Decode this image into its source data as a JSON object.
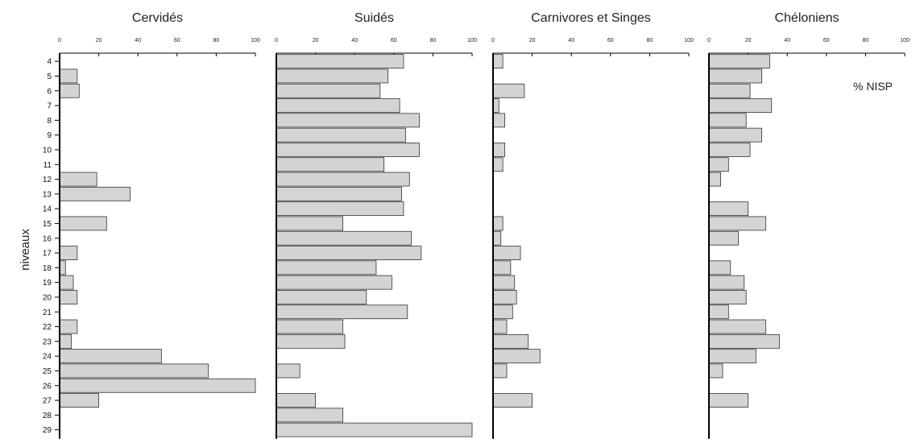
{
  "chart_data": {
    "type": "bar",
    "orientation": "horizontal",
    "ylabel": "niveaux",
    "unit_label": "% NISP",
    "xlim": [
      0,
      100
    ],
    "xticks": [
      0,
      20,
      40,
      60,
      80,
      100
    ],
    "levels": [
      "4",
      "5",
      "6",
      "7",
      "8",
      "9",
      "10",
      "11",
      "12",
      "13",
      "14",
      "15",
      "16",
      "17",
      "18",
      "19",
      "20",
      "21",
      "22",
      "23",
      "24",
      "25",
      "26",
      "27",
      "28",
      "29"
    ],
    "bar_color": "#d4d4d4",
    "panels": [
      {
        "title": "Cervidés",
        "values": [
          0,
          9,
          10,
          0,
          0,
          0,
          0,
          0,
          19,
          36,
          0,
          24,
          0,
          9,
          3,
          7,
          9,
          0,
          9,
          6,
          52,
          76,
          100,
          20,
          0,
          0
        ]
      },
      {
        "title": "Suidés",
        "values": [
          65,
          57,
          53,
          63,
          73,
          66,
          73,
          55,
          68,
          64,
          65,
          34,
          69,
          74,
          51,
          59,
          46,
          67,
          34,
          35,
          0,
          12,
          0,
          20,
          34,
          100
        ]
      },
      {
        "title": "Carnivores et Singes",
        "values": [
          5,
          0,
          16,
          3,
          6,
          0,
          6,
          5,
          0,
          0,
          0,
          5,
          4,
          14,
          9,
          11,
          12,
          10,
          7,
          18,
          24,
          7,
          0,
          20,
          0,
          0
        ]
      },
      {
        "title": "Chéloniens",
        "values": [
          31,
          27,
          21,
          32,
          19,
          27,
          21,
          10,
          6,
          0,
          20,
          29,
          15,
          0,
          11,
          18,
          19,
          10,
          29,
          36,
          24,
          7,
          0,
          20,
          0,
          0
        ]
      }
    ]
  }
}
